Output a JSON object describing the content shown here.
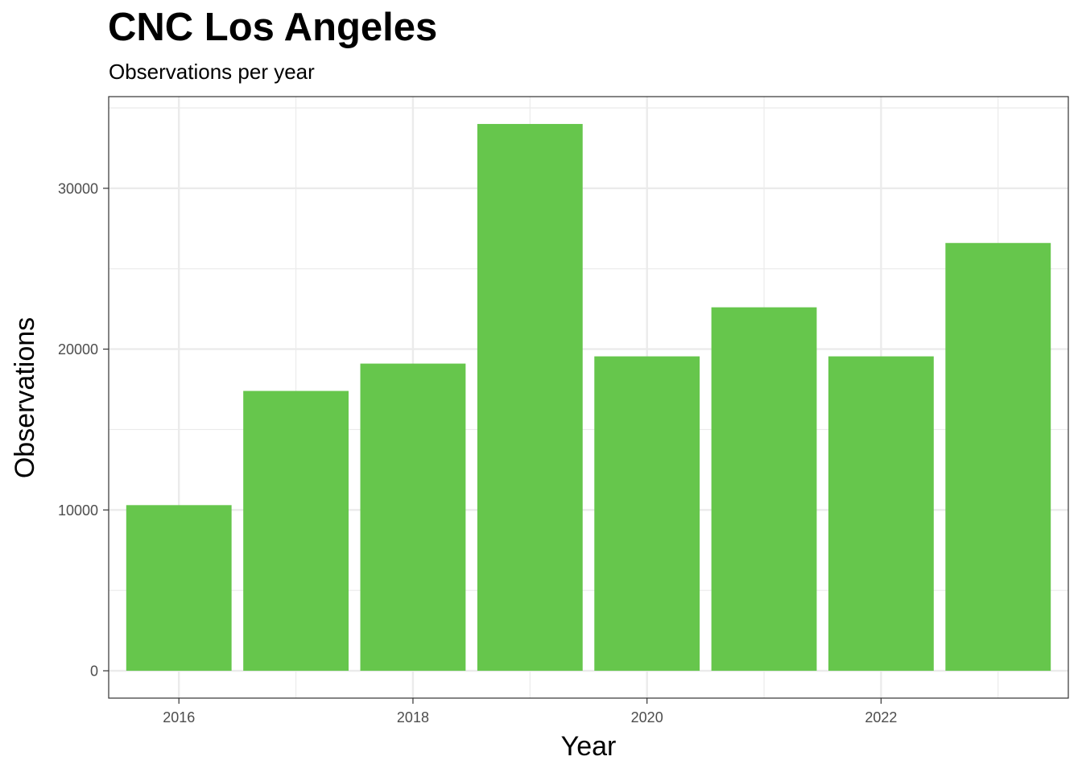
{
  "chart_data": {
    "type": "bar",
    "title": "CNC Los Angeles",
    "subtitle": "Observations per year",
    "xlabel": "Year",
    "ylabel": "Observations",
    "x": [
      2016,
      2017,
      2018,
      2019,
      2020,
      2021,
      2022,
      2023
    ],
    "values": [
      10300,
      17400,
      19100,
      34000,
      19550,
      22600,
      19550,
      26600
    ],
    "x_ticks": [
      2016,
      2018,
      2020,
      2022
    ],
    "y_ticks": [
      0,
      10000,
      20000,
      30000
    ],
    "xlim": [
      2015.4,
      2023.6
    ],
    "ylim": [
      -1700,
      35700
    ],
    "bar_color": "#66c64c",
    "grid": true,
    "legend": "none"
  }
}
